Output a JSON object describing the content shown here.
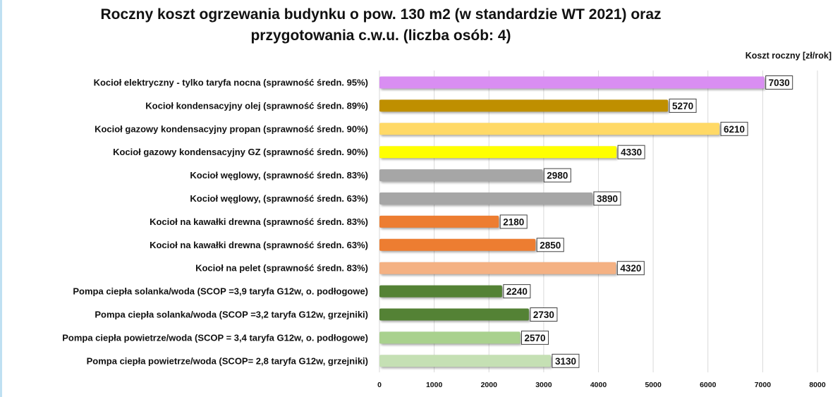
{
  "chart_data": {
    "type": "bar",
    "orientation": "horizontal",
    "title_line1": "Roczny koszt ogrzewania budynku o pow. 130 m2 (w standardzie WT 2021) oraz",
    "title_line2": "przygotowania c.w.u. (liczba osób: 4)",
    "unit_label": "Koszt roczny [zł/rok]",
    "xlim": [
      0,
      8000
    ],
    "xticks": [
      "0",
      "1000",
      "2000",
      "3000",
      "4000",
      "5000",
      "6000",
      "7000",
      "8000"
    ],
    "grid": true,
    "categories": [
      "Kocioł  elektryczny - tylko taryfa nocna (sprawność średn. 95%)",
      "Kocioł  kondensacyjny olej (sprawność średn. 89%)",
      "Kocioł gazowy kondensacyjny propan (sprawność średn. 90%)",
      "Kocioł gazowy kondensacyjny GZ (sprawność średn. 90%)",
      "Kocioł węglowy,  (sprawność średn. 83%)",
      "Kocioł węglowy,  (sprawność średn. 63%)",
      "Kocioł na kawałki drewna (sprawność średn. 83%)",
      "Kocioł na kawałki drewna (sprawność średn. 63%)",
      "Kocioł na pelet (sprawność średn. 83%)",
      "Pompa ciepła solanka/woda (SCOP =3,9 taryfa G12w, o. podłogowe)",
      "Pompa ciepła solanka/woda (SCOP =3,2 taryfa G12w, grzejniki)",
      "Pompa ciepła powietrze/woda (SCOP = 3,4 taryfa G12w, o. podłogowe)",
      "Pompa ciepła powietrze/woda (SCOP= 2,8 taryfa G12w, grzejniki)"
    ],
    "values": [
      7030,
      5270,
      6210,
      4330,
      2980,
      3890,
      2180,
      2850,
      4320,
      2240,
      2730,
      2570,
      3130
    ],
    "value_labels": [
      "7030",
      "5270",
      "6210",
      "4330",
      "2980",
      "3890",
      "2180",
      "2850",
      "4320",
      "2240",
      "2730",
      "2570",
      "3130"
    ],
    "colors": [
      "#d98ef2",
      "#bf8f00",
      "#ffd966",
      "#ffff00",
      "#a6a6a6",
      "#a6a6a6",
      "#ed7d31",
      "#ed7d31",
      "#f4b183",
      "#548235",
      "#548235",
      "#a9d18e",
      "#c5e0b4"
    ]
  }
}
